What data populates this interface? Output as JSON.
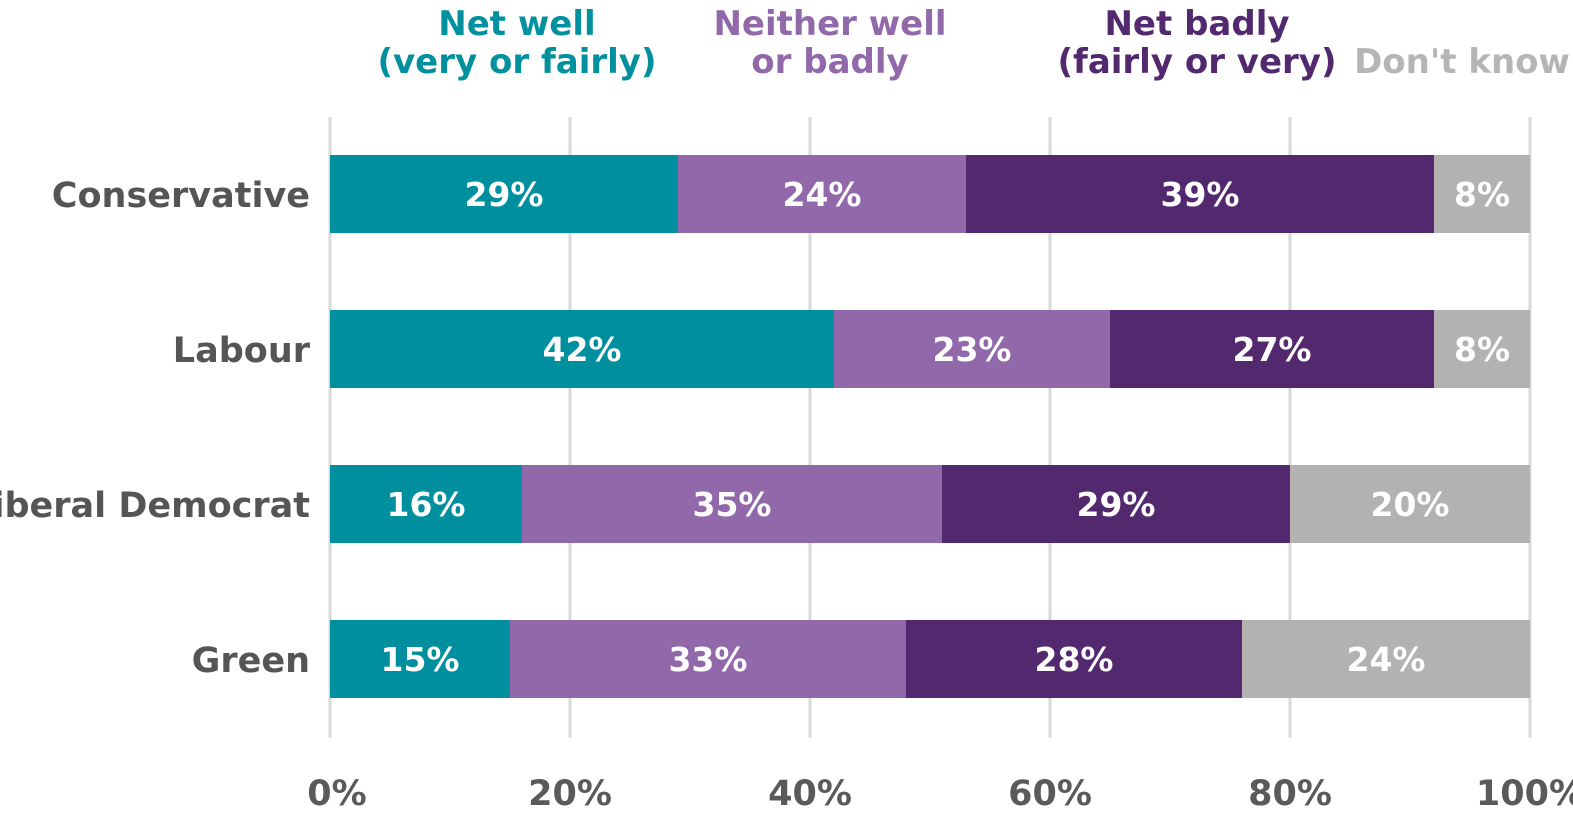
{
  "chart_data": {
    "type": "bar",
    "orientation": "horizontal",
    "stacked": true,
    "title": "",
    "xlabel": "",
    "ylabel": "",
    "xlim": [
      0,
      100
    ],
    "x_ticks": [
      "0%",
      "20%",
      "40%",
      "60%",
      "80%",
      "100%"
    ],
    "grid": true,
    "legend_position": "top",
    "categories": [
      "Conservative",
      "Labour",
      "Liberal Democrat",
      "Green"
    ],
    "series": [
      {
        "name": "Net well (very or fairly)",
        "legend_lines": [
          "Net well",
          "(very or fairly)"
        ],
        "color": "#008F9E",
        "legend_color": "#00909E",
        "values": [
          29,
          42,
          16,
          15
        ]
      },
      {
        "name": "Neither well or badly",
        "legend_lines": [
          "Neither well",
          "or badly"
        ],
        "color": "#9168AA",
        "legend_color": "#9168AA",
        "values": [
          24,
          23,
          35,
          33
        ]
      },
      {
        "name": "Net badly (fairly or very)",
        "legend_lines": [
          "Net badly",
          "(fairly or very)"
        ],
        "color": "#52286E",
        "legend_color": "#52286E",
        "values": [
          39,
          27,
          29,
          28
        ]
      },
      {
        "name": "Don't know",
        "legend_lines": [
          "Don't know"
        ],
        "color": "#B3B1B1",
        "legend_color": "#B5B5B5",
        "values": [
          8,
          8,
          20,
          24
        ]
      }
    ],
    "value_suffix": "%"
  }
}
